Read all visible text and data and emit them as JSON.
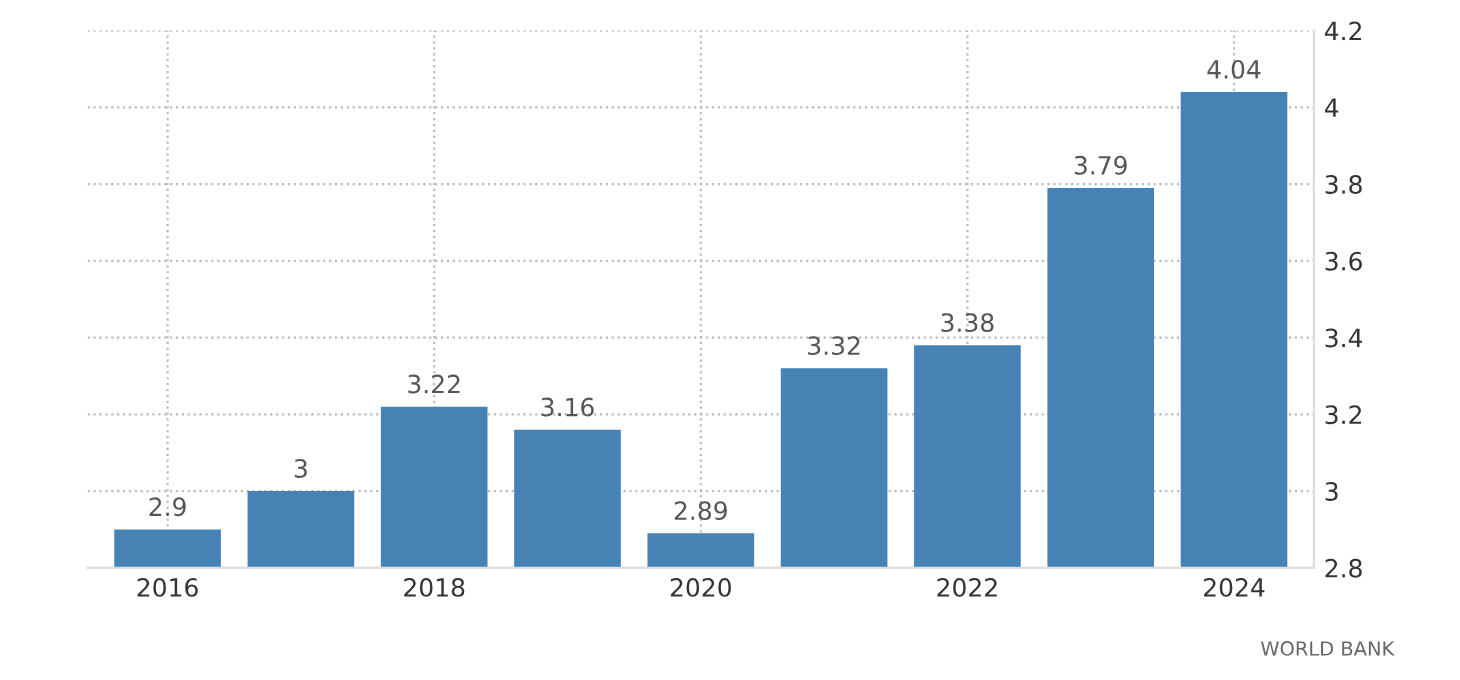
{
  "chart_data": {
    "type": "bar",
    "categories": [
      "2016",
      null,
      "2018",
      null,
      "2020",
      null,
      "2022",
      null,
      "2024"
    ],
    "values": [
      2.9,
      3,
      3.22,
      3.16,
      2.89,
      3.32,
      3.38,
      3.79,
      4.04
    ],
    "color": "#4682b4",
    "ylim": [
      2.8,
      4.2
    ],
    "yticks": [
      2.8,
      3,
      3.2,
      3.4,
      3.6,
      3.8,
      4,
      4.2
    ],
    "grid": true,
    "data_labels": true,
    "annotations": [
      "WORLD BANK"
    ]
  }
}
